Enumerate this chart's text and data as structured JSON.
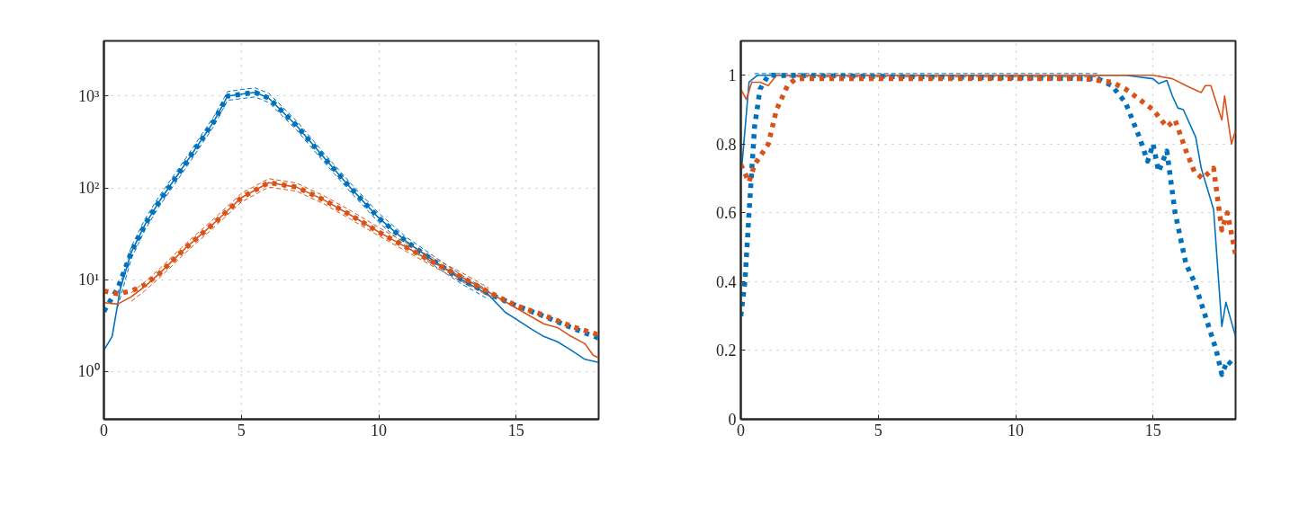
{
  "chart_data": [
    {
      "type": "line",
      "log": "y",
      "grid": true,
      "xlim": [
        0,
        18
      ],
      "xticks": [
        0,
        5,
        10,
        15
      ],
      "ylim": [
        0.3,
        4000
      ],
      "yticks": [
        {
          "value": 1,
          "label": "10⁰"
        },
        {
          "value": 10,
          "label": "10¹"
        },
        {
          "value": 100,
          "label": "10²"
        },
        {
          "value": 1000,
          "label": "10³"
        }
      ],
      "series": [
        {
          "color": "#0072bd",
          "line_style": "solid",
          "x": [
            0,
            0.3,
            0.6,
            1,
            1.5,
            2,
            3,
            4,
            4.5,
            5,
            5.5,
            6,
            7,
            8,
            9,
            10,
            11,
            12,
            13,
            14,
            14.6,
            15,
            15.5,
            16,
            16.5,
            17,
            17.5,
            18
          ],
          "values": [
            1.7,
            2.4,
            8,
            20,
            40,
            70,
            190,
            530,
            1000,
            1050,
            1100,
            950,
            480,
            215,
            98,
            47,
            26,
            16,
            10,
            6.8,
            4.4,
            3.7,
            2.95,
            2.4,
            2.1,
            1.7,
            1.35,
            1.25
          ]
        },
        {
          "color": "#0072bd",
          "line_style": "dashed",
          "x": [
            0.5,
            1,
            1.5,
            2,
            3,
            4,
            4.5,
            5,
            5.5,
            6,
            7,
            8,
            9,
            10,
            11,
            12,
            13,
            14
          ],
          "values": [
            7,
            23,
            46,
            80,
            215,
            600,
            1120,
            1180,
            1230,
            1070,
            540,
            240,
            110,
            53,
            29,
            18,
            11.2,
            7.6
          ]
        },
        {
          "color": "#0072bd",
          "line_style": "dashed",
          "x": [
            0.5,
            1,
            1.5,
            2,
            3,
            4,
            4.5,
            5,
            5.5,
            6,
            7,
            8,
            9,
            10,
            11,
            12,
            13,
            14
          ],
          "values": [
            5,
            17,
            35,
            62,
            168,
            470,
            900,
            940,
            980,
            850,
            430,
            192,
            88,
            42,
            23,
            14.3,
            9,
            6.1
          ]
        },
        {
          "color": "#0072bd",
          "line_style": "dotted",
          "x": [
            0,
            0.5,
            1,
            1.5,
            2,
            3,
            4,
            4.5,
            5,
            5.5,
            6,
            7,
            8,
            9,
            10,
            11,
            12,
            13,
            14,
            15,
            16,
            17,
            18
          ],
          "values": [
            4.5,
            8,
            20,
            40,
            70,
            190,
            530,
            1000,
            1050,
            1100,
            950,
            480,
            215,
            98,
            47,
            26,
            16,
            10,
            7,
            5.2,
            4,
            3,
            2.3
          ]
        },
        {
          "color": "#d95319",
          "line_style": "solid",
          "x": [
            0,
            0.5,
            1,
            1.5,
            2,
            3,
            4,
            5,
            6,
            7,
            8,
            9,
            10,
            11,
            12,
            13,
            14,
            15,
            16,
            16.5,
            17,
            17.5,
            17.8,
            18
          ],
          "values": [
            5.6,
            5.4,
            6.5,
            8.5,
            11.5,
            22.5,
            41,
            78,
            114,
            102,
            74,
            50,
            33,
            22.5,
            15.3,
            10.7,
            7.3,
            4.9,
            3.3,
            3.0,
            2.4,
            2.0,
            1.5,
            1.4
          ]
        },
        {
          "color": "#d95319",
          "line_style": "dashed",
          "x": [
            1,
            1.5,
            2,
            3,
            4,
            5,
            6,
            7,
            8,
            9,
            10,
            11,
            12,
            13,
            14
          ],
          "values": [
            7.2,
            9.5,
            12.9,
            25,
            46,
            87,
            126,
            113,
            82,
            56,
            37,
            25,
            17,
            12,
            8.1
          ]
        },
        {
          "color": "#d95319",
          "line_style": "dashed",
          "x": [
            1,
            1.5,
            2,
            3,
            4,
            5,
            6,
            7,
            8,
            9,
            10,
            11,
            12,
            13,
            14
          ],
          "values": [
            5.8,
            7.6,
            10.3,
            20,
            37,
            70,
            102,
            92,
            67,
            45,
            30,
            20.3,
            13.8,
            9.6,
            6.6
          ]
        },
        {
          "color": "#d95319",
          "line_style": "dotted",
          "x": [
            0,
            0.5,
            1,
            1.5,
            2,
            3,
            4,
            5,
            6,
            7,
            8,
            9,
            10,
            11,
            12,
            13,
            14,
            15,
            16,
            17,
            18
          ],
          "values": [
            7.5,
            7,
            7.5,
            8.8,
            11.5,
            22.5,
            41,
            78,
            114,
            102,
            74,
            50,
            33,
            22.5,
            15.3,
            10.7,
            7.3,
            5.2,
            4.1,
            3.1,
            2.5
          ]
        }
      ]
    },
    {
      "type": "line",
      "grid": true,
      "xlim": [
        0,
        18
      ],
      "xticks": [
        0,
        5,
        10,
        15
      ],
      "ylim": [
        0,
        1.1
      ],
      "yticks": [
        0,
        0.2,
        0.4,
        0.6,
        0.8,
        1
      ],
      "series": [
        {
          "color": "#0072bd",
          "line_style": "dashed",
          "x": [
            0.5,
            13
          ],
          "values": [
            1.005,
            1.005
          ]
        },
        {
          "color": "#d95319",
          "line_style": "dashed",
          "x": [
            1.5,
            13
          ],
          "values": [
            0.995,
            0.995
          ]
        },
        {
          "color": "#0072bd",
          "line_style": "solid",
          "x": [
            0,
            0.3,
            0.6,
            1,
            14,
            14.5,
            15,
            15.2,
            15.5,
            15.7,
            15.9,
            16.1,
            16.55,
            16.75,
            17.2,
            17.5,
            17.65,
            18
          ],
          "values": [
            0.7,
            0.98,
            1.0,
            1.0,
            1.0,
            0.995,
            0.99,
            0.976,
            0.985,
            0.94,
            0.905,
            0.9,
            0.82,
            0.73,
            0.61,
            0.27,
            0.34,
            0.24
          ]
        },
        {
          "color": "#d95319",
          "line_style": "solid",
          "x": [
            0,
            0.2,
            0.4,
            0.7,
            1.0,
            1.3,
            15,
            15.7,
            16.3,
            16.75,
            16.9,
            17.1,
            17.5,
            17.6,
            17.85,
            18
          ],
          "values": [
            0.96,
            0.93,
            0.98,
            0.98,
            0.97,
            1.0,
            1.0,
            0.99,
            0.966,
            0.95,
            0.97,
            0.97,
            0.87,
            0.94,
            0.8,
            0.84
          ]
        },
        {
          "color": "#0072bd",
          "line_style": "dotted",
          "x": [
            0,
            0.15,
            0.3,
            0.5,
            0.7,
            1.0,
            13,
            13.5,
            14,
            14.5,
            14.8,
            15,
            15.2,
            15.5,
            15.8,
            16.2,
            16.5,
            16.9,
            17.3,
            17.5,
            17.7,
            18
          ],
          "values": [
            0.3,
            0.4,
            0.6,
            0.85,
            0.96,
            1.0,
            0.99,
            0.97,
            0.92,
            0.82,
            0.75,
            0.8,
            0.72,
            0.78,
            0.6,
            0.45,
            0.4,
            0.3,
            0.2,
            0.13,
            0.17,
            0.15
          ]
        },
        {
          "color": "#d95319",
          "line_style": "dotted",
          "x": [
            0,
            0.3,
            0.5,
            1.0,
            1.3,
            1.7,
            2.0,
            12.5,
            13.5,
            14,
            14.5,
            15,
            15.5,
            15.8,
            16.2,
            16.5,
            16.8,
            17.2,
            17.5,
            17.7,
            18
          ],
          "values": [
            0.74,
            0.69,
            0.74,
            0.8,
            0.9,
            0.97,
            0.99,
            0.99,
            0.98,
            0.96,
            0.93,
            0.9,
            0.85,
            0.87,
            0.78,
            0.72,
            0.7,
            0.73,
            0.55,
            0.6,
            0.48
          ]
        }
      ]
    }
  ]
}
